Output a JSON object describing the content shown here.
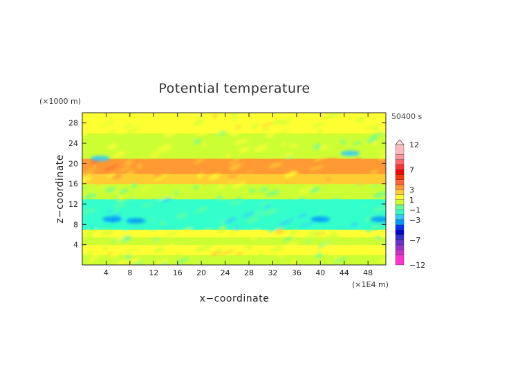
{
  "chart_data": {
    "type": "heatmap",
    "title": "Potential temperature",
    "xlabel": "x−coordinate",
    "ylabel": "z−coordinate",
    "x_unit": "(×1E4 m)",
    "y_unit": "(×1000 m)",
    "time_label": "50400 s",
    "xlim": [
      0,
      51
    ],
    "ylim": [
      0,
      30
    ],
    "x_ticks": [
      4,
      8,
      12,
      16,
      20,
      24,
      28,
      32,
      36,
      40,
      44,
      48
    ],
    "y_ticks": [
      4,
      8,
      12,
      16,
      20,
      24,
      28
    ],
    "colorbar": {
      "min": -12,
      "max": 12,
      "labels": [
        12,
        7,
        3,
        1,
        -1,
        -3,
        -7,
        -12
      ],
      "levels": [
        {
          "lo": -12,
          "hi": -10,
          "color": "#ff33cc"
        },
        {
          "lo": -10,
          "hi": -9,
          "color": "#cc33cc"
        },
        {
          "lo": -9,
          "hi": -8,
          "color": "#9933cc"
        },
        {
          "lo": -8,
          "hi": -7,
          "color": "#6633cc"
        },
        {
          "lo": -7,
          "hi": -6,
          "color": "#3333cc"
        },
        {
          "lo": -6,
          "hi": -5,
          "color": "#0000cc"
        },
        {
          "lo": -5,
          "hi": -4,
          "color": "#0033ff"
        },
        {
          "lo": -4,
          "hi": -3,
          "color": "#0099ff"
        },
        {
          "lo": -3,
          "hi": -2,
          "color": "#33ccff"
        },
        {
          "lo": -2,
          "hi": -1,
          "color": "#33ffcc"
        },
        {
          "lo": -1,
          "hi": 0,
          "color": "#66ff99"
        },
        {
          "lo": 0,
          "hi": 1,
          "color": "#ccff33"
        },
        {
          "lo": 1,
          "hi": 2,
          "color": "#ffff33"
        },
        {
          "lo": 2,
          "hi": 3,
          "color": "#ffcc33"
        },
        {
          "lo": 3,
          "hi": 4,
          "color": "#ff9933"
        },
        {
          "lo": 4,
          "hi": 5,
          "color": "#ff6633"
        },
        {
          "lo": 5,
          "hi": 6,
          "color": "#ff3300"
        },
        {
          "lo": 6,
          "hi": 7,
          "color": "#ff0000"
        },
        {
          "lo": 7,
          "hi": 8,
          "color": "#ff3333"
        },
        {
          "lo": 8,
          "hi": 9,
          "color": "#ff6666"
        },
        {
          "lo": 9,
          "hi": 10,
          "color": "#ff9999"
        },
        {
          "lo": 10,
          "hi": 12,
          "color": "#ffbbbb"
        }
      ]
    },
    "vertical_profile": [
      {
        "z_range": [
          0,
          2
        ],
        "value": 0.6
      },
      {
        "z_range": [
          2,
          4
        ],
        "value": 1.4
      },
      {
        "z_range": [
          4,
          5.5
        ],
        "value": 0.5
      },
      {
        "z_range": [
          5.5,
          7
        ],
        "value": 1.2
      },
      {
        "z_range": [
          7,
          10
        ],
        "value": -1.5
      },
      {
        "z_range": [
          10,
          13
        ],
        "value": -1.3
      },
      {
        "z_range": [
          13,
          16
        ],
        "value": 0.3
      },
      {
        "z_range": [
          16,
          18
        ],
        "value": 2.2
      },
      {
        "z_range": [
          18,
          21
        ],
        "value": 3.2
      },
      {
        "z_range": [
          21,
          23
        ],
        "value": 0.8
      },
      {
        "z_range": [
          23,
          26
        ],
        "value": 0.6
      },
      {
        "z_range": [
          26,
          30
        ],
        "value": 1.3
      }
    ],
    "features": [
      {
        "x": 5,
        "z": 9,
        "value": -3.3
      },
      {
        "x": 9,
        "z": 8.7,
        "value": -3.3
      },
      {
        "x": 40,
        "z": 9,
        "value": -3.4
      },
      {
        "x": 50,
        "z": 9,
        "value": -3.3
      },
      {
        "x": 22,
        "z": 20,
        "value": 3.8
      },
      {
        "x": 28,
        "z": 20,
        "value": 3.6
      },
      {
        "x": 42,
        "z": 20.5,
        "value": 3.8
      },
      {
        "x": 3,
        "z": 21,
        "value": -2.3
      },
      {
        "x": 45,
        "z": 22,
        "value": -2.2
      }
    ]
  }
}
